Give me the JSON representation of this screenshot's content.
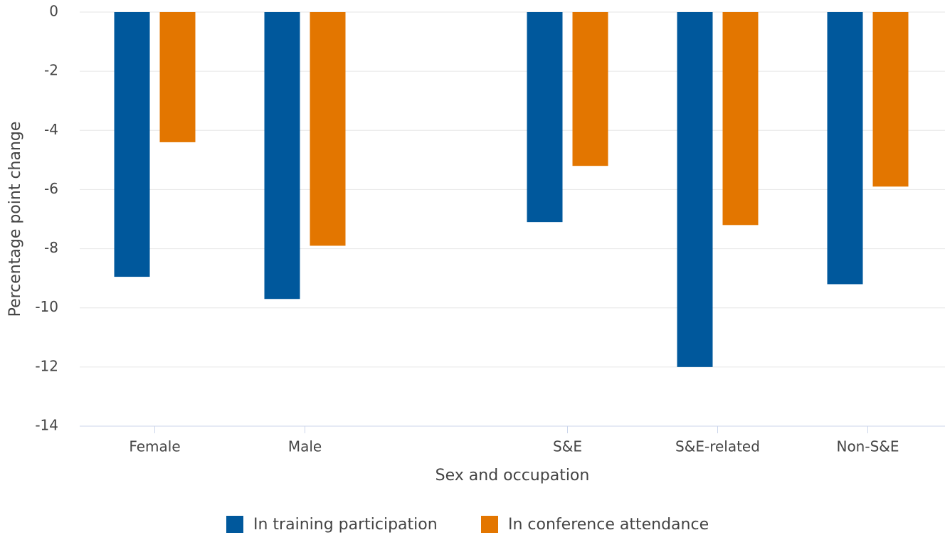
{
  "chart_data": {
    "type": "bar",
    "y_axis_label": "Percentage point change",
    "x_axis_label": "Sex and occupation",
    "categories": [
      "Female",
      "Male",
      null,
      "S&E",
      "S&E-related",
      "Non-S&E"
    ],
    "series": [
      {
        "name": "In training participation",
        "color": "#00589c",
        "values": [
          -8.95,
          -9.7,
          null,
          -7.1,
          -12.0,
          -9.2
        ]
      },
      {
        "name": "In conference attendance",
        "color": "#e37600",
        "values": [
          -4.4,
          -7.9,
          null,
          -5.2,
          -7.2,
          -5.9
        ]
      }
    ],
    "ylim": [
      -14,
      0
    ],
    "yticks": [
      0,
      -2,
      -4,
      -6,
      -8,
      -10,
      -12,
      -14
    ],
    "grid": true,
    "legend": "bottom"
  }
}
